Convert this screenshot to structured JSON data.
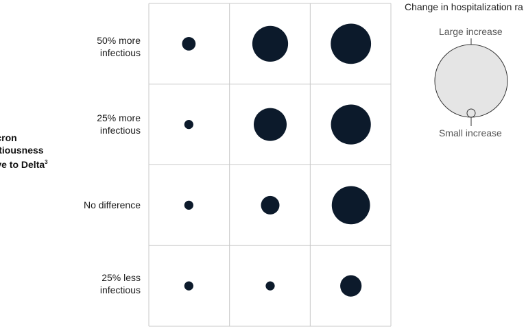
{
  "chart_data": {
    "type": "bubble-grid",
    "y_axis_title_lines": [
      "micron",
      "fectiousness",
      "ative to Delta"
    ],
    "y_axis_title_footnote": "3",
    "rows": [
      "50% more\ninfectious",
      "25% more\ninfectious",
      "No difference",
      "25% less\ninfectious"
    ],
    "column_count": 3,
    "size_scale_max": 1.0,
    "values": [
      [
        0.33,
        0.87,
        0.98
      ],
      [
        0.22,
        0.8,
        0.97
      ],
      [
        0.22,
        0.45,
        0.93
      ],
      [
        0.22,
        0.22,
        0.52
      ]
    ],
    "bubble_color": "#0c1a2b",
    "grid_color": "#c8c8c8",
    "legend": {
      "title": "Change in hospitalization ra",
      "large_label": "Large increase",
      "small_label": "Small increase",
      "fill_color": "#e5e5e5",
      "stroke_color": "#333333"
    }
  }
}
